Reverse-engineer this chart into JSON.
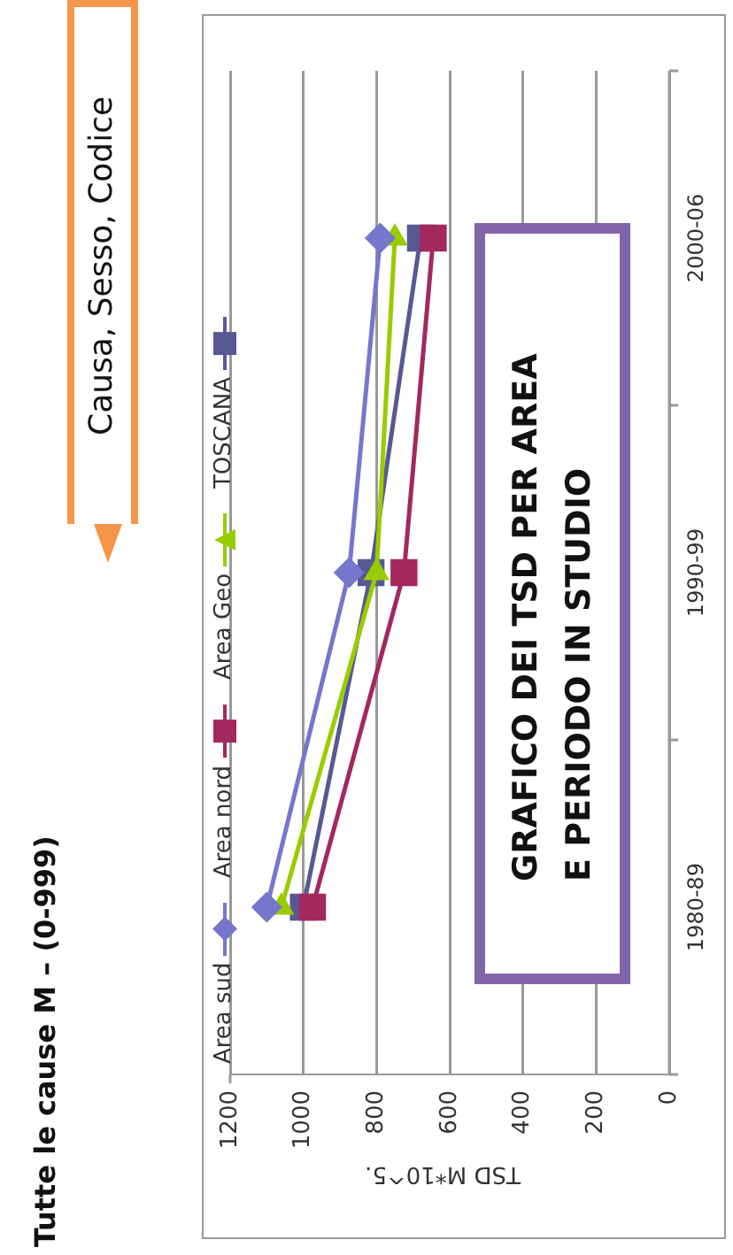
{
  "chart_data": {
    "type": "line",
    "orientation": "horizontal",
    "title": "Tutte le cause M – (0-999)",
    "xlabel": "TSD M*10^5.",
    "categories": [
      "2000-06",
      "1990-99",
      "1980-89"
    ],
    "series": [
      {
        "name": "Area sud",
        "color": "#7676cc",
        "marker": "diamond",
        "values": [
          790,
          875,
          1100
        ]
      },
      {
        "name": "Area nord",
        "color": "#a3285e",
        "marker": "square",
        "values": [
          645,
          725,
          975
        ]
      },
      {
        "name": "Area Geo",
        "color": "#99cc00",
        "marker": "triangle",
        "values": [
          750,
          800,
          1060
        ]
      },
      {
        "name": "TOSCANA",
        "color": "#585894",
        "marker": "square",
        "values": [
          680,
          815,
          1000
        ]
      }
    ],
    "xlim": [
      1200,
      0
    ],
    "xticks": [
      0,
      200,
      400,
      600,
      800,
      1000,
      1200
    ],
    "grid": "x",
    "legend": "left",
    "annotations": [
      "Causa, Sesso, Codice",
      "GRAFICO DEI TSD PER AREA E PERIODO IN STUDIO"
    ]
  }
}
